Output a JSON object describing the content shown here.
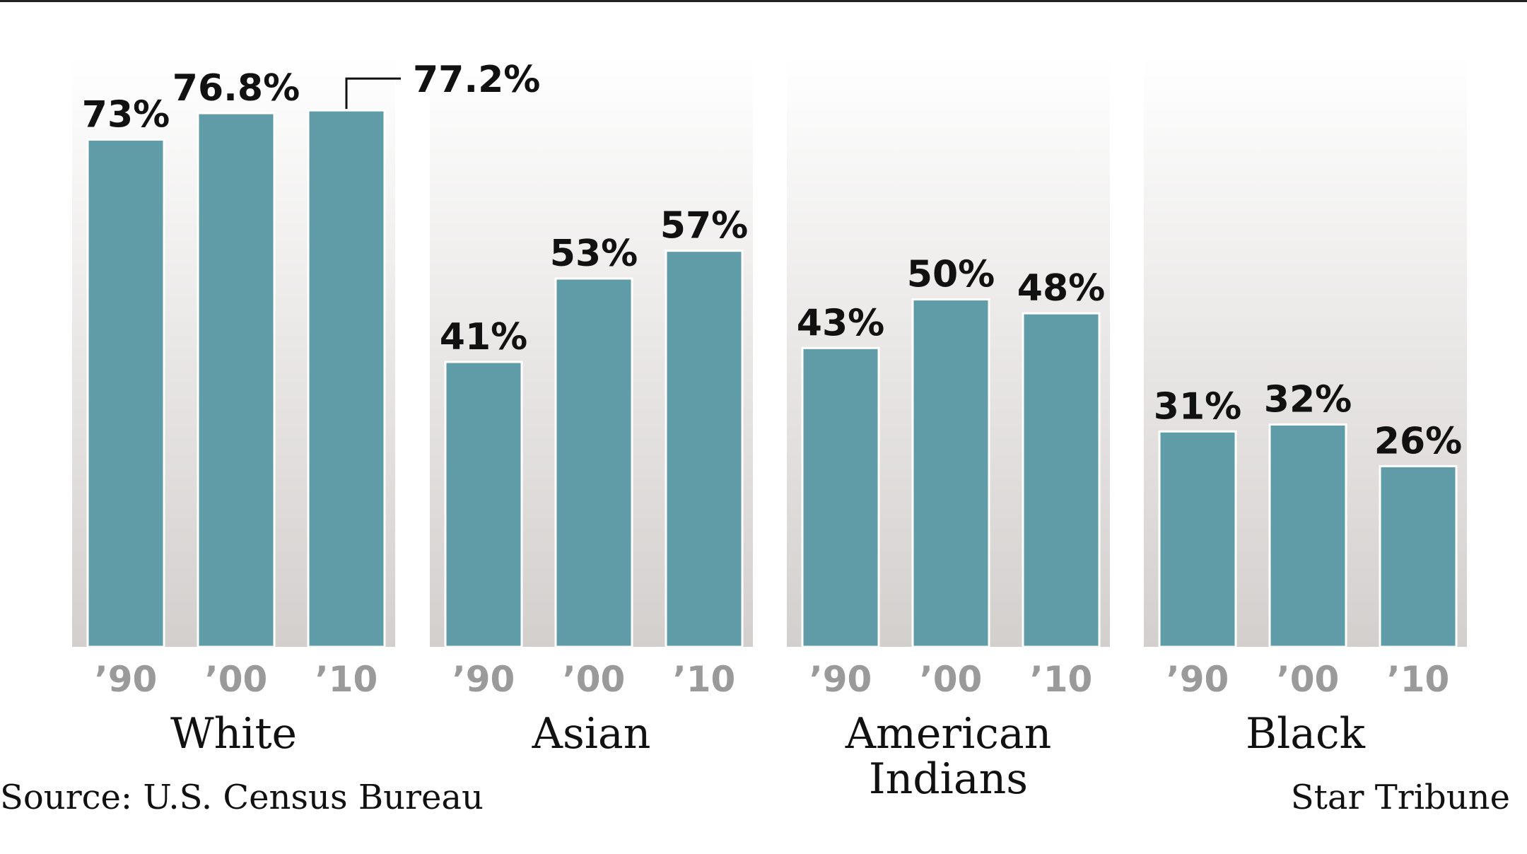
{
  "chart_data": {
    "type": "bar",
    "groups": [
      {
        "name": "White",
        "categories": [
          "’90",
          "’00",
          "’10"
        ],
        "values": [
          73,
          76.8,
          77.2
        ],
        "labels": [
          "73%",
          "76.8%",
          "77.2%"
        ]
      },
      {
        "name": "Asian",
        "categories": [
          "’90",
          "’00",
          "’10"
        ],
        "values": [
          41,
          53,
          57
        ],
        "labels": [
          "41%",
          "53%",
          "57%"
        ]
      },
      {
        "name": "American Indians",
        "categories": [
          "’90",
          "’00",
          "’10"
        ],
        "values": [
          43,
          50,
          48
        ],
        "labels": [
          "43%",
          "50%",
          "48%"
        ]
      },
      {
        "name": "Black",
        "categories": [
          "’90",
          "’00",
          "’10"
        ],
        "values": [
          31,
          32,
          26
        ],
        "labels": [
          "31%",
          "32%",
          "26%"
        ]
      }
    ],
    "ylim": [
      0,
      100
    ],
    "grid": false,
    "bar_color": "#5f9ca8"
  },
  "footer": {
    "source": "Source: U.S. Census Bureau",
    "credit": "Star Tribune"
  }
}
